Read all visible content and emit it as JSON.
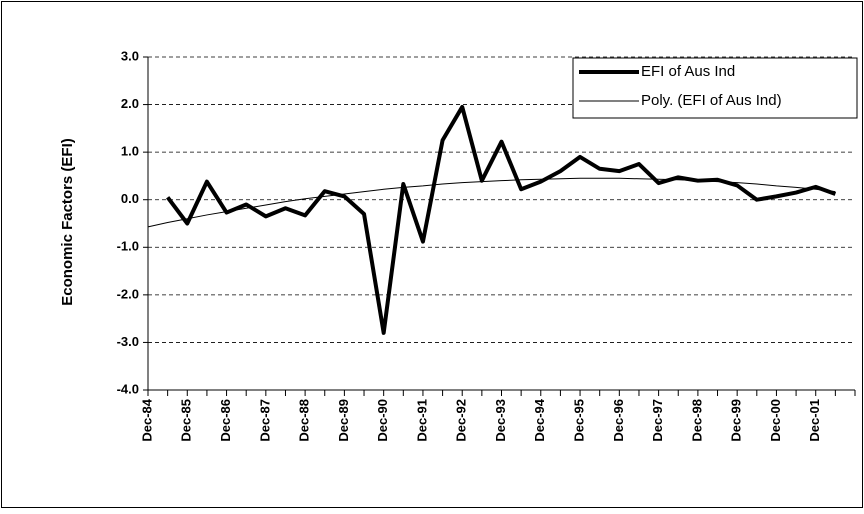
{
  "chart_data": {
    "type": "line",
    "categories": [
      "Dec-84",
      null,
      "Dec-85",
      null,
      "Dec-86",
      null,
      "Dec-87",
      null,
      "Dec-88",
      null,
      "Dec-89",
      null,
      "Dec-90",
      null,
      "Dec-91",
      null,
      "Dec-92",
      null,
      "Dec-93",
      null,
      "Dec-94",
      null,
      "Dec-95",
      null,
      "Dec-96",
      null,
      "Dec-97",
      null,
      "Dec-98",
      null,
      "Dec-99",
      null,
      "Dec-00",
      null,
      "Dec-01",
      null
    ],
    "series": [
      {
        "name": "EFI  of Aus Ind",
        "color": "#000000",
        "width": 4,
        "values": [
          null,
          0.05,
          -0.5,
          0.38,
          -0.27,
          -0.1,
          -0.35,
          -0.18,
          -0.33,
          0.18,
          0.07,
          -0.3,
          -2.8,
          0.33,
          -0.88,
          1.25,
          1.95,
          0.4,
          1.22,
          0.22,
          0.38,
          0.6,
          0.9,
          0.65,
          0.6,
          0.75,
          0.35,
          0.47,
          0.4,
          0.42,
          0.3,
          0.0,
          0.07,
          0.15,
          0.27,
          0.12
        ]
      },
      {
        "name": "Poly. (EFI  of Aus Ind)",
        "color": "#000000",
        "width": 1,
        "values": [
          -0.57,
          -0.48,
          -0.4,
          -0.32,
          -0.25,
          -0.18,
          -0.11,
          -0.04,
          0.02,
          0.07,
          0.12,
          0.17,
          0.22,
          0.26,
          0.29,
          0.33,
          0.36,
          0.38,
          0.4,
          0.42,
          0.43,
          0.44,
          0.45,
          0.45,
          0.45,
          0.44,
          0.43,
          0.42,
          0.4,
          0.38,
          0.36,
          0.33,
          0.29,
          0.26,
          0.22,
          0.17
        ]
      }
    ],
    "y_label": "Economic Factors (EFI)",
    "ylim": [
      -4,
      3
    ],
    "yticks": [
      {
        "value": -4,
        "label": "-4.0"
      },
      {
        "value": -3,
        "label": "-3.0"
      },
      {
        "value": -2,
        "label": "-2.0"
      },
      {
        "value": -1,
        "label": "-1.0"
      },
      {
        "value": 0,
        "label": "0.0"
      },
      {
        "value": 1,
        "label": "1.0"
      },
      {
        "value": 2,
        "label": "2.0"
      },
      {
        "value": 3,
        "label": "3.0"
      }
    ],
    "grid": true,
    "legend": "upper right"
  }
}
